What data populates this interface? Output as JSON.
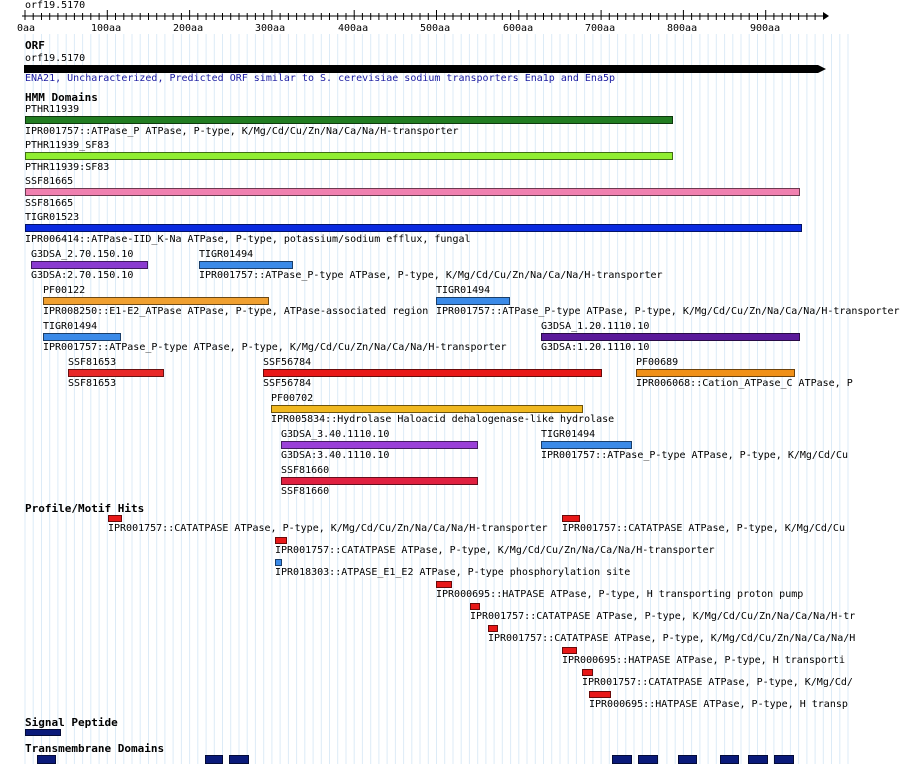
{
  "header": {
    "title": "orf19.5170",
    "ruler_ticks": [
      "0aa",
      "100aa",
      "200aa",
      "300aa",
      "400aa",
      "500aa",
      "600aa",
      "700aa",
      "800aa",
      "900aa"
    ]
  },
  "orf_section": {
    "heading": "ORF",
    "name": "orf19.5170",
    "description": "ENA21, Uncharacterized, Predicted ORF similar to S. cerevisiae sodium transporters Ena1p and Ena5p"
  },
  "hmm_section": {
    "heading": "HMM Domains",
    "rows": [
      {
        "top_label": "PTHR11939",
        "bottom_label": "IPR001757::ATPase_P ATPase, P-type, K/Mg/Cd/Cu/Zn/Na/Ca/Na/H-transporter",
        "color": "#217c21"
      },
      {
        "top_label": "PTHR11939_SF83",
        "bottom_label": "PTHR11939:SF83",
        "color": "#90ee30"
      },
      {
        "top_label": "SSF81665",
        "bottom_label": "SSF81665",
        "color": "#f080b0"
      },
      {
        "top_label": "TIGR01523",
        "bottom_label": "IPR006414::ATPase-IID_K-Na ATPase, P-type, potassium/sodium efflux, fungal",
        "color": "#0a2ae0"
      },
      {
        "top_label": "G3DSA_2.70.150.10",
        "bottom_label": "G3DSA:2.70.150.10",
        "color": "#8a3bd0"
      },
      {
        "top_label": "TIGR01494",
        "bottom_label": "IPR001757::ATPase_P-type ATPase, P-type, K/Mg/Cd/Cu/Zn/Na/Ca/Na/H-transporter",
        "color": "#3a8ae8"
      },
      {
        "top_label": "PF00122",
        "bottom_label": "IPR008250::E1-E2_ATPase ATPase, P-type, ATPase-associated region",
        "color": "#f0a030"
      },
      {
        "top_label": "TIGR01494",
        "bottom_label": "IPR001757::ATPase_P-type ATPase, P-type, K/Mg/Cd/Cu/Zn/Na/Ca/Na/H-transporter",
        "color": "#3a8ae8"
      },
      {
        "top_label": "TIGR01494",
        "bottom_label": "IPR001757::ATPase_P-type ATPase, P-type, K/Mg/Cd/Cu/Zn/Na/Ca/Na/H-transporter",
        "color": "#3a8ae8"
      },
      {
        "top_label": "G3DSA_1.20.1110.10",
        "bottom_label": "G3DSA:1.20.1110.10",
        "color": "#5a1a9a"
      },
      {
        "top_label": "SSF81653",
        "bottom_label": "SSF81653",
        "color": "#e82828"
      },
      {
        "top_label": "SSF56784",
        "bottom_label": "SSF56784",
        "color": "#e81818"
      },
      {
        "top_label": "PF00689",
        "bottom_label": "IPR006068::Cation_ATPase_C ATPase, P",
        "color": "#f09018"
      },
      {
        "top_label": "PF00702",
        "bottom_label": "IPR005834::Hydrolase Haloacid dehalogenase-like hydrolase",
        "color": "#f0b820"
      },
      {
        "top_label": "G3DSA_3.40.1110.10",
        "bottom_label": "G3DSA:3.40.1110.10",
        "color": "#9a40d8"
      },
      {
        "top_label": "TIGR01494",
        "bottom_label": "IPR001757::ATPase_P-type ATPase, P-type, K/Mg/Cd/Cu",
        "color": "#3a8ae8"
      },
      {
        "top_label": "SSF81660",
        "bottom_label": "SSF81660",
        "color": "#e02040"
      }
    ]
  },
  "profile_section": {
    "heading": "Profile/Motif Hits",
    "rows": [
      {
        "label": "IPR001757::CATATPASE ATPase, P-type, K/Mg/Cd/Cu/Zn/Na/Ca/Na/H-transporter",
        "color": "#e81818"
      },
      {
        "label": "IPR001757::CATATPASE ATPase, P-type, K/Mg/Cd/Cu",
        "color": "#e81818"
      },
      {
        "label": "IPR001757::CATATPASE ATPase, P-type, K/Mg/Cd/Cu/Zn/Na/Ca/Na/H-transporter",
        "color": "#e81818"
      },
      {
        "label": "IPR018303::ATPASE_E1_E2 ATPase, P-type phosphorylation site",
        "color": "#3a8ae8"
      },
      {
        "label": "IPR000695::HATPASE ATPase, P-type, H  transporting proton pump",
        "color": "#e81818"
      },
      {
        "label": "IPR001757::CATATPASE ATPase, P-type, K/Mg/Cd/Cu/Zn/Na/Ca/Na/H-tr",
        "color": "#e81818"
      },
      {
        "label": "IPR001757::CATATPASE ATPase, P-type, K/Mg/Cd/Cu/Zn/Na/Ca/Na/H",
        "color": "#e81818"
      },
      {
        "label": "IPR000695::HATPASE ATPase, P-type, H  transporti",
        "color": "#e81818"
      },
      {
        "label": "IPR001757::CATATPASE ATPase, P-type, K/Mg/Cd/",
        "color": "#e81818"
      },
      {
        "label": "IPR000695::HATPASE ATPase, P-type, H  transp",
        "color": "#e81818"
      }
    ]
  },
  "signal_section": {
    "heading": "Signal Peptide",
    "color": "#0a1a7a"
  },
  "tm_section": {
    "heading": "Transmembrane Domains",
    "color": "#0a1a7a"
  }
}
